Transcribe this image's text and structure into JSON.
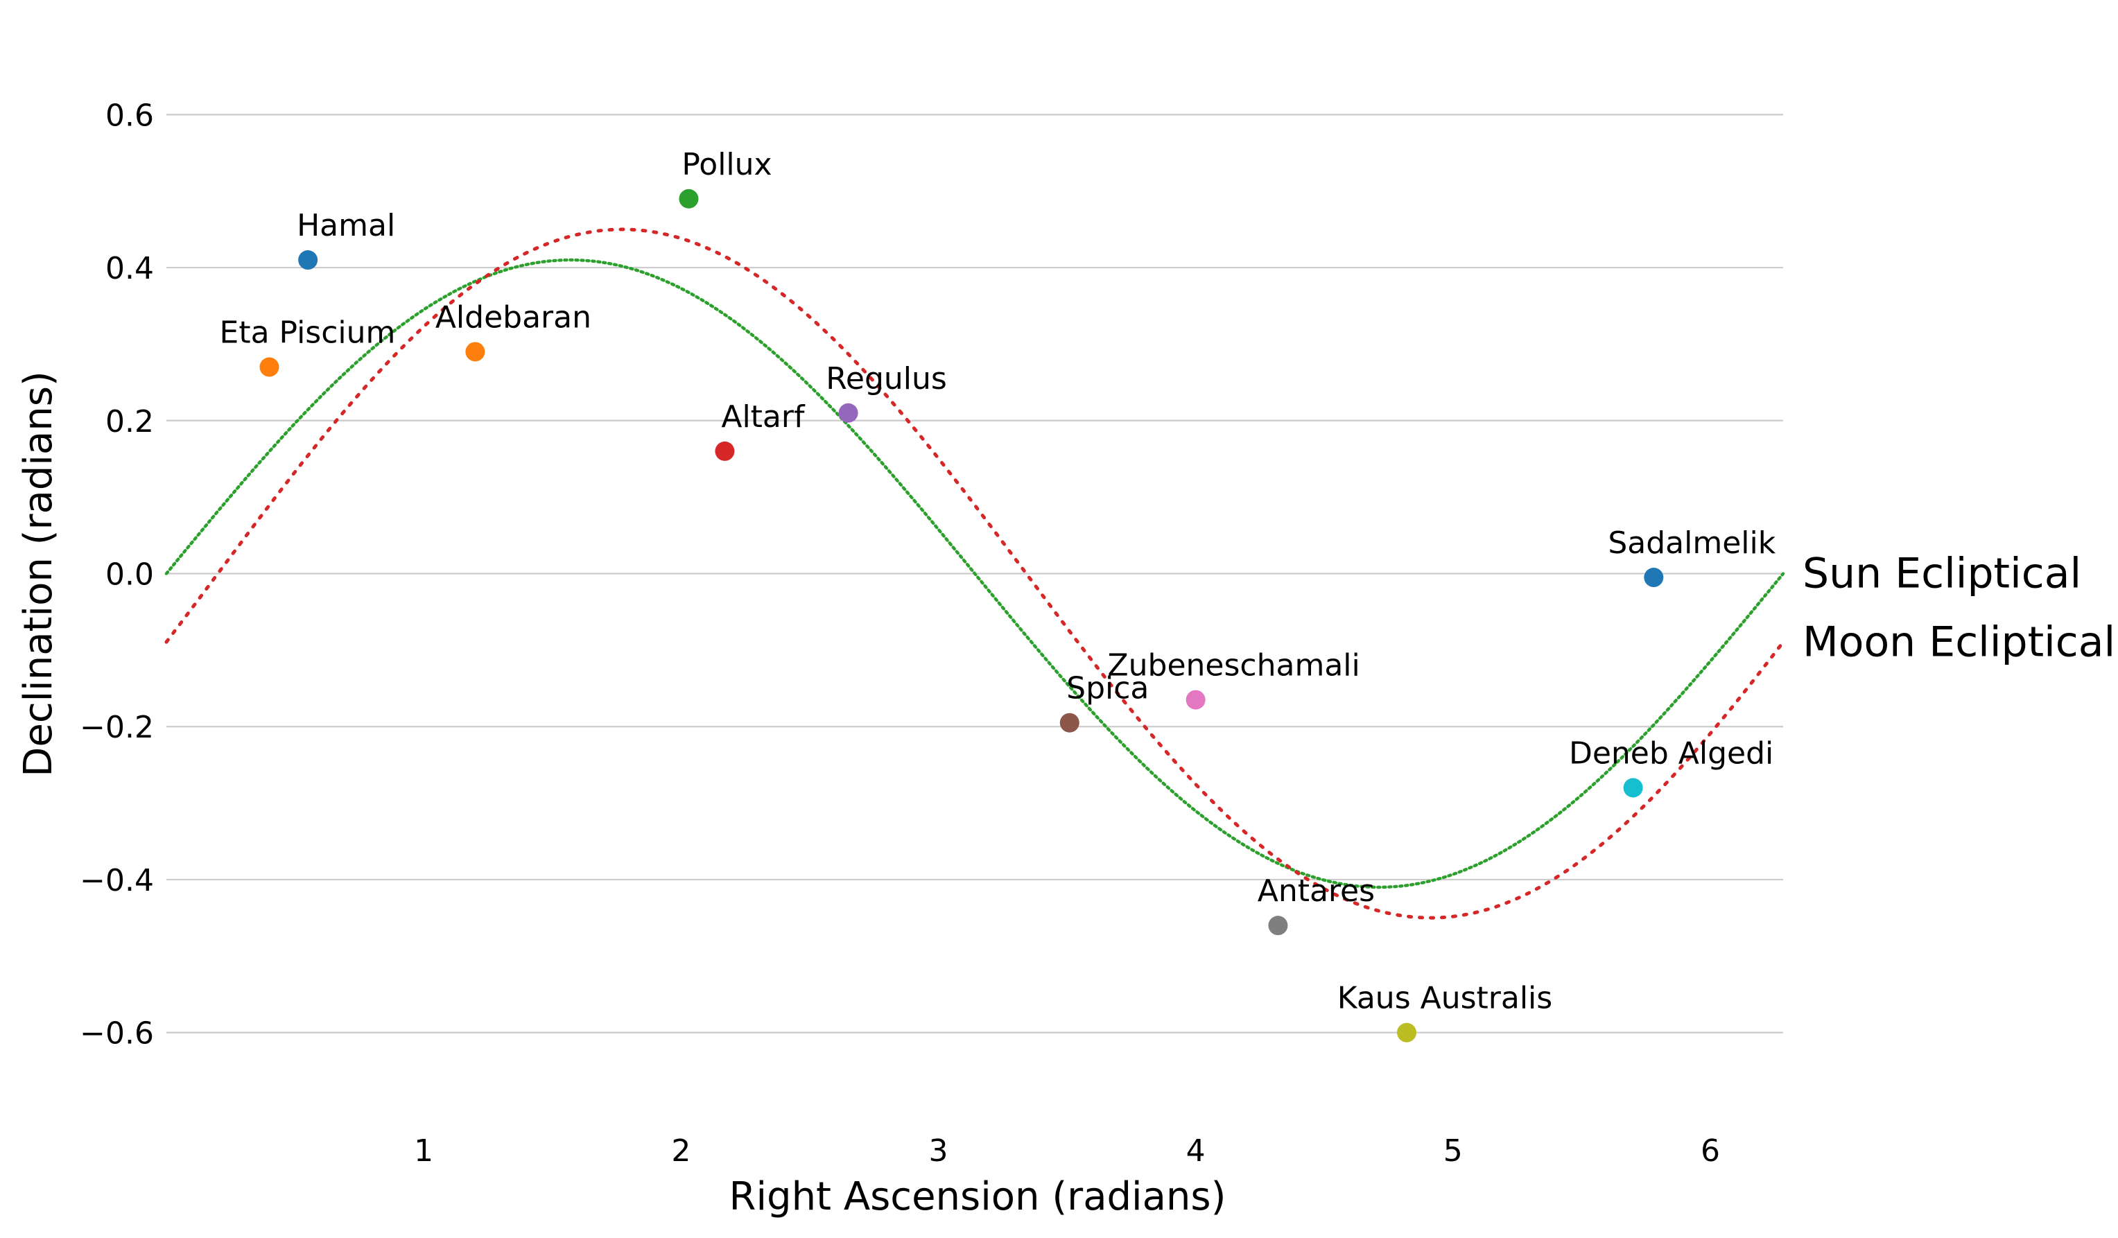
{
  "chart_data": {
    "type": "scatter",
    "xlabel": "Right Ascension (radians)",
    "ylabel": "Declination (radians)",
    "xlim": [
      0,
      6.283
    ],
    "ylim": [
      -0.7,
      0.7
    ],
    "x_ticks": [
      1,
      2,
      3,
      4,
      5,
      6
    ],
    "x_tick_labels": [
      "1",
      "2",
      "3",
      "4",
      "5",
      "6"
    ],
    "y_ticks": [
      -0.6,
      -0.4,
      -0.2,
      0.0,
      0.2,
      0.4,
      0.6
    ],
    "y_tick_labels": [
      "−0.6",
      "−0.4",
      "−0.2",
      "0.0",
      "0.2",
      "0.4",
      "0.6"
    ],
    "grid": "horizontal",
    "stars": [
      {
        "name": "Hamal",
        "ra": 0.55,
        "dec": 0.41,
        "color": "#1f77b4"
      },
      {
        "name": "Eta Piscium",
        "ra": 0.4,
        "dec": 0.27,
        "color": "#ff7f0e"
      },
      {
        "name": "Aldebaran",
        "ra": 1.2,
        "dec": 0.29,
        "color": "#ff7f0e"
      },
      {
        "name": "Pollux",
        "ra": 2.03,
        "dec": 0.49,
        "color": "#2ca02c"
      },
      {
        "name": "Altarf",
        "ra": 2.17,
        "dec": 0.16,
        "color": "#d62728"
      },
      {
        "name": "Regulus",
        "ra": 2.65,
        "dec": 0.21,
        "color": "#9467bd"
      },
      {
        "name": "Spica",
        "ra": 3.51,
        "dec": -0.195,
        "color": "#8c564b"
      },
      {
        "name": "Zubeneschamali",
        "ra": 4.0,
        "dec": -0.165,
        "color": "#e377c2"
      },
      {
        "name": "Antares",
        "ra": 4.32,
        "dec": -0.46,
        "color": "#7f7f7f"
      },
      {
        "name": "Kaus Australis",
        "ra": 4.82,
        "dec": -0.6,
        "color": "#bcbd22"
      },
      {
        "name": "Deneb Algedi",
        "ra": 5.7,
        "dec": -0.28,
        "color": "#17becf"
      },
      {
        "name": "Sadalmelik",
        "ra": 5.78,
        "dec": -0.005,
        "color": "#1f77b4"
      }
    ],
    "curves": [
      {
        "name": "Sun Ecliptical",
        "color": "#2ca02c",
        "style": "dotted",
        "amplitude": 0.41,
        "phase": 0.0,
        "x_range": [
          0,
          6.283
        ]
      },
      {
        "name": "Moon Ecliptical",
        "color": "#d62728",
        "style": "dotted",
        "amplitude": 0.45,
        "phase": -0.2,
        "x_range": [
          0,
          6.283
        ]
      }
    ]
  }
}
